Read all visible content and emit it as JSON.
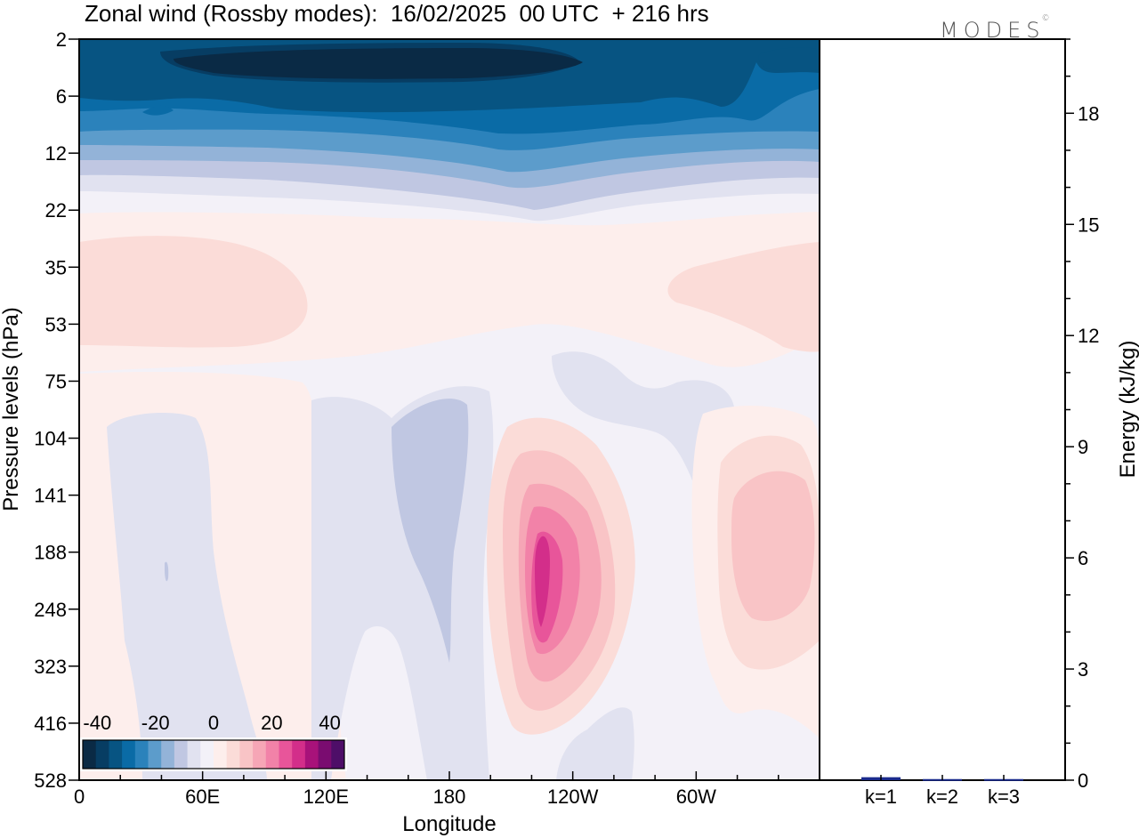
{
  "title": "Zonal wind (Rossby modes):  16/02/2025  00 UTC  + 216 hrs",
  "brand": {
    "name": "MODES",
    "mark": "©"
  },
  "colors": {
    "neg40": "#0a2a45",
    "neg35": "#073d63",
    "neg30": "#075482",
    "neg25": "#0a6ba6",
    "neg20": "#2b82bb",
    "neg15": "#5c9ccb",
    "neg10": "#93b3d8",
    "neg5": "#c0c7e2",
    "neg2": "#e1e2f0",
    "neg1": "#f3f1f8",
    "pos1": "#fdeeec",
    "pos2": "#fbdcd8",
    "pos3": "#f9c4c6",
    "pos4": "#f6a6b6",
    "pos5": "#f282a8",
    "pos6": "#e8559a",
    "pos7": "#d32e8a",
    "pos8": "#a8127a",
    "pos9": "#7a0c70",
    "pos10": "#4e0e68",
    "energy_bar": "#1a2a8c"
  },
  "chart_data": [
    {
      "type": "heatmap",
      "title": "Zonal wind (Rossby modes):  16/02/2025  00 UTC  + 216 hrs",
      "xlabel": "Longitude",
      "ylabel": "Pressure levels (hPa)",
      "x_ticks": [
        "0",
        "60E",
        "120E",
        "180",
        "120W",
        "60W"
      ],
      "y_ticks": [
        "2",
        "6",
        "12",
        "22",
        "35",
        "53",
        "75",
        "104",
        "141",
        "188",
        "248",
        "323",
        "416",
        "528"
      ],
      "y_scale": "log",
      "colorbar": {
        "tick_labels": [
          "-40",
          "-20",
          "0",
          "20",
          "40"
        ],
        "range": [
          -45,
          45
        ],
        "step": 5
      },
      "features": [
        {
          "region": "upper levels 2-6 hPa, 40E-150W",
          "value": -40
        },
        {
          "region": "upper levels 2-12 hPa, all longitudes",
          "value": -30
        },
        {
          "region": "35-53 hPa, 0-100E",
          "value": 5
        },
        {
          "region": "35-53 hPa, 75W-0",
          "value": 5
        },
        {
          "region": "141-323 hPa, 100W-125W",
          "value": 30
        },
        {
          "region": "141-323 hPa, 40W-0",
          "value": 10
        },
        {
          "region": "104-248 hPa, 150E-180",
          "value": -5
        }
      ]
    },
    {
      "type": "bar",
      "categories": [
        "k=1",
        "k=2",
        "k=3"
      ],
      "values": [
        0.08,
        0.03,
        0.03
      ],
      "ylabel": "Energy (kJ/kg)",
      "ylim": [
        0,
        20
      ],
      "y_ticks": [
        "0",
        "3",
        "6",
        "9",
        "12",
        "15",
        "18"
      ]
    }
  ]
}
